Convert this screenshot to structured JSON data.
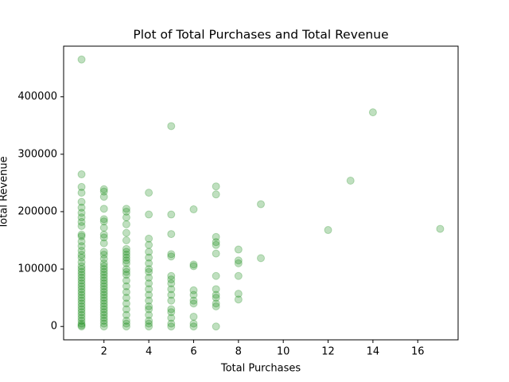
{
  "chart_data": {
    "type": "scatter",
    "title": "Plot of Total Purchases and Total Revenue",
    "x_label": "Total Purchases",
    "y_label": "Total Revenue",
    "color": "green",
    "x": [
      1,
      1,
      1,
      1,
      1,
      1,
      1,
      1,
      1,
      1,
      1,
      1,
      1,
      1,
      1,
      1,
      1,
      1,
      1,
      1,
      1,
      1,
      1,
      1,
      1,
      1,
      1,
      1,
      1,
      1,
      1,
      1,
      1,
      1,
      1,
      1,
      1,
      1,
      1,
      1,
      1,
      2,
      2,
      2,
      2,
      2,
      2,
      2,
      2,
      2,
      2,
      2,
      2,
      2,
      2,
      2,
      2,
      2,
      2,
      2,
      2,
      2,
      2,
      2,
      2,
      2,
      2,
      2,
      2,
      2,
      2,
      2,
      2,
      2,
      2,
      2,
      2,
      3,
      3,
      3,
      3,
      3,
      3,
      3,
      3,
      3,
      3,
      3,
      3,
      3,
      3,
      3,
      3,
      3,
      3,
      3,
      3,
      3,
      3,
      3,
      3,
      3,
      4,
      4,
      4,
      4,
      4,
      4,
      4,
      4,
      4,
      4,
      4,
      4,
      4,
      4,
      4,
      4,
      4,
      4,
      4,
      4,
      5,
      5,
      5,
      5,
      5,
      5,
      5,
      5,
      5,
      5,
      5,
      5,
      5,
      5,
      5,
      5,
      6,
      6,
      6,
      6,
      6,
      6,
      6,
      6,
      6,
      6,
      7,
      7,
      7,
      7,
      7,
      7,
      7,
      7,
      7,
      7,
      7,
      7,
      7,
      8,
      8,
      8,
      8,
      8,
      8,
      9,
      9,
      12,
      13,
      14,
      17
    ],
    "values": [
      465000,
      265000,
      243000,
      233000,
      217000,
      207000,
      198000,
      190000,
      182000,
      175000,
      160000,
      157000,
      148000,
      140000,
      132000,
      125000,
      120000,
      112000,
      105000,
      100000,
      95000,
      90000,
      85000,
      80000,
      75000,
      70000,
      65000,
      60000,
      55000,
      50000,
      45000,
      40000,
      35000,
      30000,
      25000,
      20000,
      15000,
      10000,
      5000,
      2000,
      0,
      239000,
      235000,
      226000,
      205000,
      187000,
      183000,
      172000,
      160000,
      155000,
      145000,
      130000,
      125000,
      118000,
      110000,
      105000,
      100000,
      95000,
      90000,
      85000,
      80000,
      75000,
      70000,
      65000,
      60000,
      55000,
      50000,
      45000,
      40000,
      35000,
      30000,
      25000,
      20000,
      15000,
      10000,
      5000,
      0,
      205000,
      200000,
      190000,
      178000,
      163000,
      150000,
      135000,
      130000,
      125000,
      120000,
      115000,
      110000,
      100000,
      95000,
      90000,
      80000,
      70000,
      60000,
      50000,
      40000,
      30000,
      20000,
      10000,
      5000,
      0,
      233000,
      195000,
      153000,
      142000,
      130000,
      120000,
      110000,
      100000,
      95000,
      85000,
      75000,
      65000,
      55000,
      45000,
      35000,
      30000,
      20000,
      10000,
      5000,
      0,
      349000,
      195000,
      161000,
      126000,
      122000,
      88000,
      82000,
      75000,
      65000,
      55000,
      45000,
      30000,
      25000,
      15000,
      5000,
      0,
      204000,
      108000,
      105000,
      63000,
      55000,
      45000,
      40000,
      17000,
      5000,
      0,
      244000,
      230000,
      156000,
      147000,
      142000,
      127000,
      88000,
      65000,
      55000,
      50000,
      40000,
      35000,
      0,
      134000,
      115000,
      110000,
      88000,
      57000,
      47000,
      213000,
      119000,
      168000,
      254000,
      373000,
      170000
    ],
    "xlim": [
      0.2,
      17.8
    ],
    "ylim": [
      -23250,
      488250
    ],
    "xticks": [
      2,
      4,
      6,
      8,
      10,
      12,
      14,
      16
    ],
    "yticks": [
      0,
      100000,
      200000,
      300000,
      400000
    ]
  }
}
